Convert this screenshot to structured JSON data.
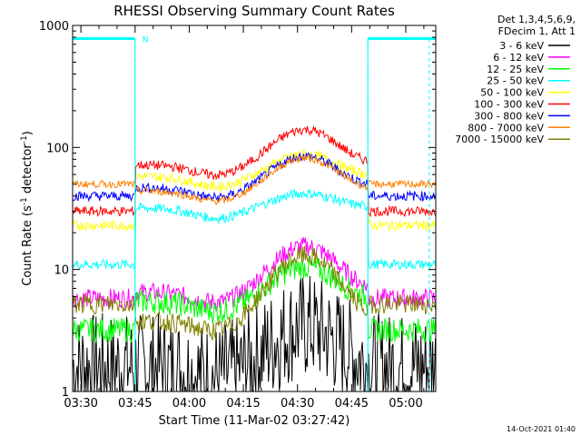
{
  "chart_data": {
    "type": "line",
    "title": "RHESSI Observing Summary Count Rates",
    "xlabel": "Start Time (11-Mar-02 03:27:42)",
    "ylabel_main": "Count Rate (s",
    "ylabel_sup1": "-1",
    "ylabel_mid": " detector",
    "ylabel_sup2": "-1",
    "ylabel_end": ")",
    "yscale": "log",
    "ylim": [
      1,
      1000
    ],
    "y_ticks": [
      {
        "value": 1,
        "label": "1"
      },
      {
        "value": 10,
        "label": "10"
      },
      {
        "value": 100,
        "label": "100"
      },
      {
        "value": 1000,
        "label": "1000"
      }
    ],
    "xlim_minutes": [
      -2.3,
      98.3
    ],
    "x_ticks": [
      {
        "min": 0,
        "label": "03:30"
      },
      {
        "min": 15,
        "label": "03:45"
      },
      {
        "min": 30,
        "label": "04:00"
      },
      {
        "min": 45,
        "label": "04:15"
      },
      {
        "min": 60,
        "label": "04:30"
      },
      {
        "min": 75,
        "label": "04:45"
      },
      {
        "min": 90,
        "label": "05:00"
      }
    ],
    "night_intervals_minutes": [
      [
        -2.3,
        15
      ],
      [
        79.5,
        98.3
      ]
    ],
    "attenuator_dashes_minutes": [
      15,
      79.5,
      96.5
    ],
    "flag_level": 780,
    "flag_marker": {
      "min": 17,
      "label": "N"
    },
    "legend_header": [
      "Det 1,3,4,5,6,9,",
      "FDecim 1, Att 1"
    ],
    "series": [
      {
        "name": "3 - 6 keV",
        "color": "#000000",
        "outside": 1.6,
        "base": 1.6,
        "peak": 3.4,
        "noise": 0.45
      },
      {
        "name": "6 - 12 keV",
        "color": "#ff00ff",
        "outside": 5.8,
        "base": 6.5,
        "peak": 15.5,
        "noise": 0.08
      },
      {
        "name": "12 - 25 keV",
        "color": "#00ff00",
        "outside": 3.2,
        "base": 5.5,
        "peak": 10.5,
        "noise": 0.1
      },
      {
        "name": "25 - 50 keV",
        "color": "#00ffff",
        "outside": 11,
        "base": 32,
        "peak": 42,
        "noise": 0.04
      },
      {
        "name": "50 - 100 keV",
        "color": "#ffff00",
        "outside": 23,
        "base": 58,
        "peak": 88,
        "noise": 0.04
      },
      {
        "name": "100 - 300 keV",
        "color": "#ff0000",
        "outside": 30,
        "base": 72,
        "peak": 140,
        "noise": 0.04
      },
      {
        "name": "300 - 800 keV",
        "color": "#0000ff",
        "outside": 40,
        "base": 47,
        "peak": 85,
        "noise": 0.04
      },
      {
        "name": "800 - 7000 keV",
        "color": "#ff8000",
        "outside": 50,
        "base": 44,
        "peak": 82,
        "noise": 0.03
      },
      {
        "name": "7000 - 15000 keV",
        "color": "#808000",
        "outside": 5.2,
        "base": 3.8,
        "peak": 13,
        "noise": 0.08
      }
    ],
    "grid": false,
    "legend_placement": "right"
  },
  "timestamp": "14-Oct-2021 01:40"
}
